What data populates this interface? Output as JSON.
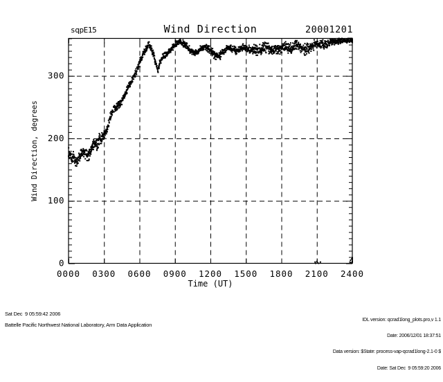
{
  "header": {
    "site_label": "sqpE15",
    "date_label": "20001201"
  },
  "chart_data": {
    "type": "scatter",
    "title": "Wind Direction",
    "xlabel": "Time (UT)",
    "ylabel": "Wind Direction, degrees",
    "xlim": [
      0,
      24
    ],
    "ylim": [
      0,
      360
    ],
    "xticks": [
      0,
      3,
      6,
      9,
      12,
      15,
      18,
      21,
      24
    ],
    "xtick_labels": [
      "0000",
      "0300",
      "0600",
      "0900",
      "1200",
      "1500",
      "1800",
      "2100",
      "2400"
    ],
    "yticks": [
      0,
      100,
      200,
      300
    ],
    "ytick_labels": [
      "0",
      "100",
      "200",
      "300"
    ],
    "y_minor_step": 10,
    "grid": "dashed",
    "marker": "square",
    "marker_color": "#000000",
    "series": [
      {
        "name": "wind_direction_deg",
        "sampling_minutes": 1,
        "control_points": [
          [
            0.0,
            177,
            8
          ],
          [
            0.35,
            168,
            8
          ],
          [
            0.7,
            164,
            7
          ],
          [
            1.0,
            173,
            8
          ],
          [
            1.3,
            178,
            7
          ],
          [
            1.6,
            171,
            7
          ],
          [
            1.9,
            180,
            6
          ],
          [
            2.2,
            192,
            7
          ],
          [
            2.4,
            186,
            8
          ],
          [
            2.6,
            198,
            8
          ],
          [
            2.8,
            200,
            7
          ],
          [
            3.0,
            205,
            6
          ],
          [
            3.3,
            216,
            5
          ],
          [
            3.6,
            238,
            6
          ],
          [
            3.9,
            247,
            5
          ],
          [
            4.3,
            254,
            6
          ],
          [
            4.7,
            266,
            5
          ],
          [
            5.0,
            280,
            5
          ],
          [
            5.3,
            291,
            5
          ],
          [
            5.6,
            300,
            5
          ],
          [
            5.9,
            315,
            5
          ],
          [
            6.2,
            330,
            5
          ],
          [
            6.5,
            342,
            4
          ],
          [
            6.8,
            350,
            4
          ],
          [
            7.0,
            344,
            4
          ],
          [
            7.2,
            333,
            4
          ],
          [
            7.4,
            318,
            4
          ],
          [
            7.55,
            308,
            4
          ],
          [
            7.7,
            320,
            4
          ],
          [
            7.9,
            328,
            4
          ],
          [
            8.2,
            333,
            4
          ],
          [
            8.5,
            339,
            4
          ],
          [
            8.8,
            346,
            4
          ],
          [
            9.1,
            352,
            4
          ],
          [
            9.4,
            355,
            3
          ],
          [
            9.7,
            352,
            4
          ],
          [
            10.0,
            348,
            4
          ],
          [
            10.3,
            341,
            4
          ],
          [
            10.6,
            336,
            4
          ],
          [
            10.9,
            338,
            4
          ],
          [
            11.2,
            344,
            4
          ],
          [
            11.5,
            347,
            4
          ],
          [
            11.8,
            344,
            5
          ],
          [
            12.1,
            339,
            5
          ],
          [
            12.4,
            332,
            5
          ],
          [
            12.7,
            331,
            5
          ],
          [
            13.0,
            337,
            5
          ],
          [
            13.3,
            343,
            4
          ],
          [
            13.6,
            345,
            4
          ],
          [
            13.9,
            343,
            4
          ],
          [
            14.2,
            340,
            5
          ],
          [
            14.5,
            343,
            4
          ],
          [
            14.8,
            346,
            4
          ],
          [
            15.1,
            344,
            4
          ],
          [
            15.4,
            341,
            5
          ],
          [
            15.7,
            343,
            6
          ],
          [
            16.0,
            340,
            7
          ],
          [
            16.3,
            342,
            7
          ],
          [
            16.6,
            346,
            6
          ],
          [
            16.9,
            344,
            6
          ],
          [
            17.2,
            341,
            7
          ],
          [
            17.5,
            344,
            6
          ],
          [
            17.8,
            342,
            6
          ],
          [
            18.1,
            344,
            6
          ],
          [
            18.4,
            347,
            6
          ],
          [
            18.7,
            343,
            7
          ],
          [
            19.0,
            346,
            7
          ],
          [
            19.3,
            350,
            6
          ],
          [
            19.6,
            345,
            7
          ],
          [
            19.9,
            341,
            9
          ],
          [
            20.2,
            344,
            8
          ],
          [
            20.5,
            347,
            7
          ],
          [
            20.8,
            350,
            6
          ],
          [
            21.1,
            352,
            5
          ],
          [
            21.4,
            349,
            6
          ],
          [
            21.7,
            351,
            5
          ],
          [
            22.0,
            353,
            5
          ],
          [
            22.3,
            355,
            4
          ],
          [
            22.6,
            354,
            4
          ],
          [
            22.9,
            356,
            4
          ],
          [
            23.2,
            357,
            3
          ],
          [
            23.5,
            356,
            3
          ],
          [
            23.8,
            358,
            3
          ],
          [
            24.0,
            358,
            3
          ]
        ],
        "outliers": [
          [
            20.85,
            2
          ],
          [
            20.9,
            0
          ],
          [
            21.0,
            3
          ],
          [
            21.05,
            1
          ],
          [
            21.15,
            0
          ],
          [
            21.3,
            2
          ],
          [
            23.8,
            2
          ],
          [
            23.85,
            5
          ],
          [
            23.9,
            1
          ],
          [
            23.95,
            7
          ],
          [
            24.0,
            3
          ],
          [
            24.0,
            9
          ]
        ]
      }
    ]
  },
  "footer": {
    "generated_at": "Sat Dec  9 05:59:42 2006",
    "organization": "Battelle Pacific Northwest National Laboratory, Arm Data Application",
    "right_lines": [
      "IDL version: qcrad1long_plots.pro,v 1.1",
      "Date: 2006/12/01 18:37:51",
      "Data version: $State: process-vap-qcrad1long-2.1-0 $",
      "Date: Sat Dec  9 05:59:20 2006"
    ]
  },
  "colors": {
    "foreground": "#000000",
    "background": "#ffffff"
  }
}
